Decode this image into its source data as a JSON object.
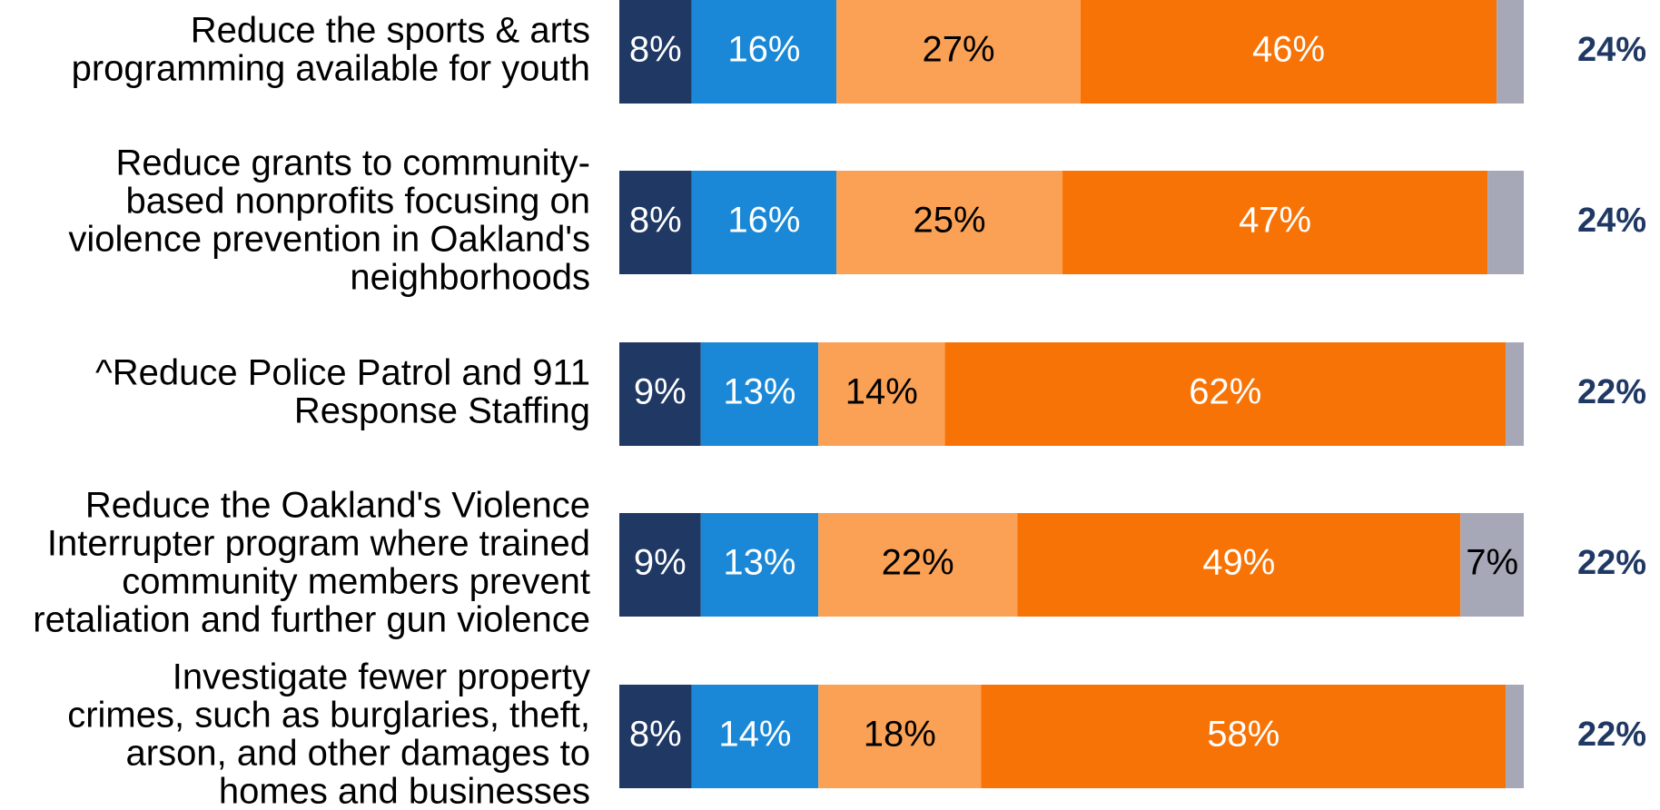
{
  "chart_data": {
    "type": "stacked-barh",
    "categories": [
      [
        "Reduce the sports & arts",
        "programming available for youth"
      ],
      [
        "Reduce grants to community-",
        "based nonprofits focusing on",
        "violence prevention in Oakland's",
        "neighborhoods"
      ],
      [
        "^Reduce Police Patrol and 911",
        "Response Staffing"
      ],
      [
        "Reduce the Oakland's Violence",
        "Interrupter program where trained",
        "community members prevent",
        "retaliation and further gun violence"
      ],
      [
        "Investigate fewer property",
        "crimes, such as burglaries, theft,",
        "arson, and other damages to",
        "homes and businesses"
      ]
    ],
    "xlim": [
      0,
      100
    ],
    "series": [
      {
        "color": "#1f3864",
        "label_color": "#ffffff",
        "values": [
          8,
          8,
          9,
          9,
          8
        ],
        "value_labels": [
          "8%",
          "8%",
          "9%",
          "9%",
          "8%"
        ]
      },
      {
        "color": "#1a88d6",
        "label_color": "#ffffff",
        "values": [
          16,
          16,
          13,
          13,
          14
        ],
        "value_labels": [
          "16%",
          "16%",
          "13%",
          "13%",
          "14%"
        ]
      },
      {
        "color": "#fba155",
        "label_color": "#000000",
        "values": [
          27,
          25,
          14,
          22,
          18
        ],
        "value_labels": [
          "27%",
          "25%",
          "14%",
          "22%",
          "18%"
        ]
      },
      {
        "color": "#f87306",
        "label_color": "#ffffff",
        "values": [
          46,
          47,
          62,
          49,
          58
        ],
        "value_labels": [
          "46%",
          "47%",
          "62%",
          "49%",
          "58%"
        ]
      },
      {
        "color": "#a6a8b8",
        "label_color": "#000000",
        "values": [
          3,
          4,
          2,
          7,
          2
        ],
        "value_labels": [
          null,
          null,
          null,
          "7%",
          null
        ]
      }
    ],
    "totals": {
      "color": "#1f3864",
      "values": [
        24,
        24,
        22,
        22,
        22
      ],
      "value_labels": [
        "24%",
        "24%",
        "22%",
        "22%",
        "22%"
      ]
    }
  }
}
